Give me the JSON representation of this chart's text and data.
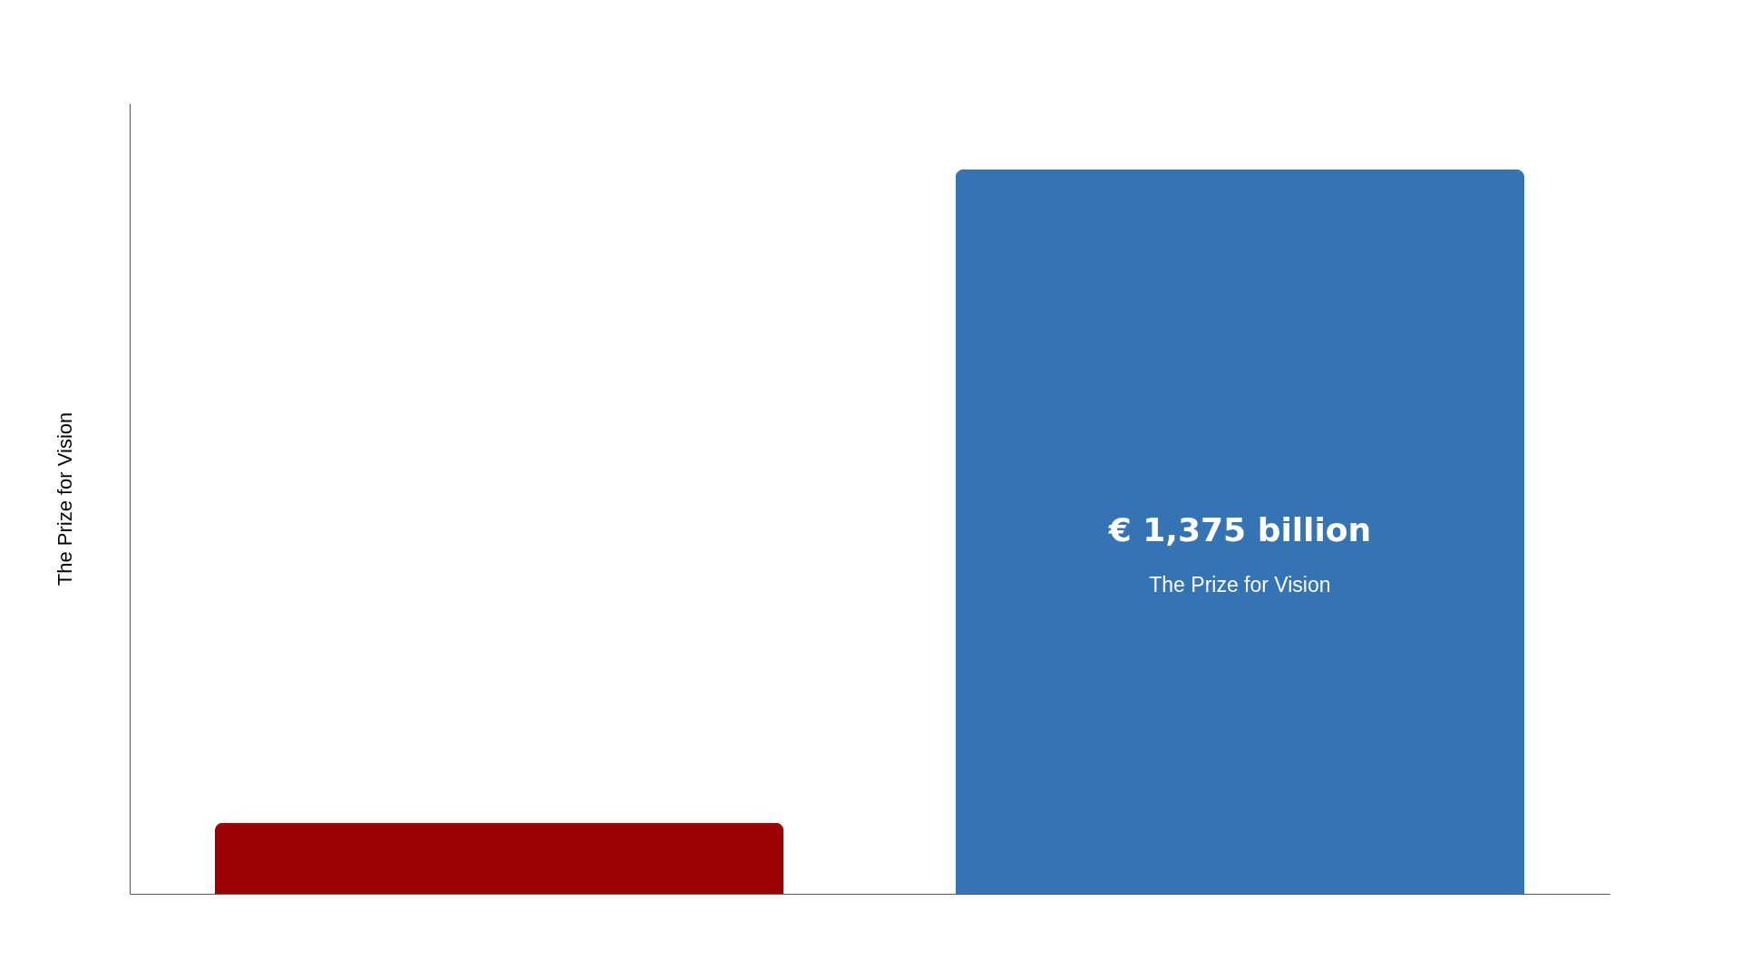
{
  "chart_data": {
    "type": "bar",
    "ylabel": "The Prize for Vision",
    "categories": [
      null,
      null
    ],
    "values": [
      135,
      1375
    ],
    "colors": [
      "#9e0303",
      "#3474b4"
    ],
    "value_labels": [
      null,
      "€ 1,375 billion"
    ],
    "annotations": [
      "The Prize for Vision"
    ],
    "ylim": [
      0,
      1500
    ]
  }
}
